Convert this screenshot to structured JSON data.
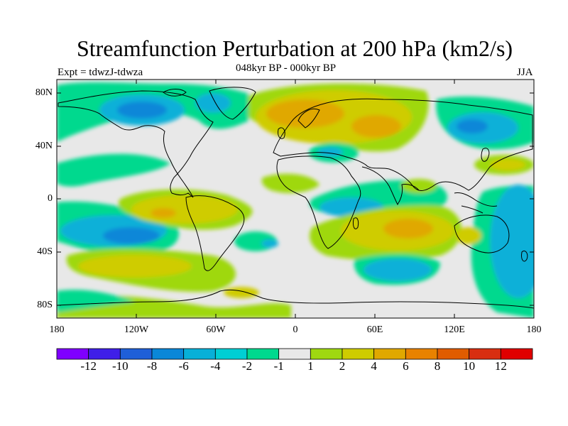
{
  "title": "Streamfunction Perturbation at 200 hPa (km2/s)",
  "subtitle": "048kyr BP - 000kyr BP",
  "left_title": "Expt = tdwzJ-tdwza",
  "right_title": "JJA",
  "lat_ticks": [
    "80N",
    "40N",
    "0",
    "40S",
    "80S"
  ],
  "lon_ticks": [
    "180",
    "120W",
    "60W",
    "0",
    "60E",
    "120E",
    "180"
  ],
  "colorbar": {
    "labels": [
      "-12",
      "-10",
      "-8",
      "-6",
      "-4",
      "-2",
      "-1",
      "1",
      "2",
      "4",
      "6",
      "8",
      "10",
      "12"
    ],
    "colors": [
      "#7f00ff",
      "#3f1fe8",
      "#1f5fd8",
      "#0a87d8",
      "#08b0d8",
      "#00cfd4",
      "#00d98e",
      "#e8e8e8",
      "#9fd810",
      "#cfcc00",
      "#e0a800",
      "#e88200",
      "#e05c00",
      "#d82e10",
      "#e00000"
    ]
  }
}
